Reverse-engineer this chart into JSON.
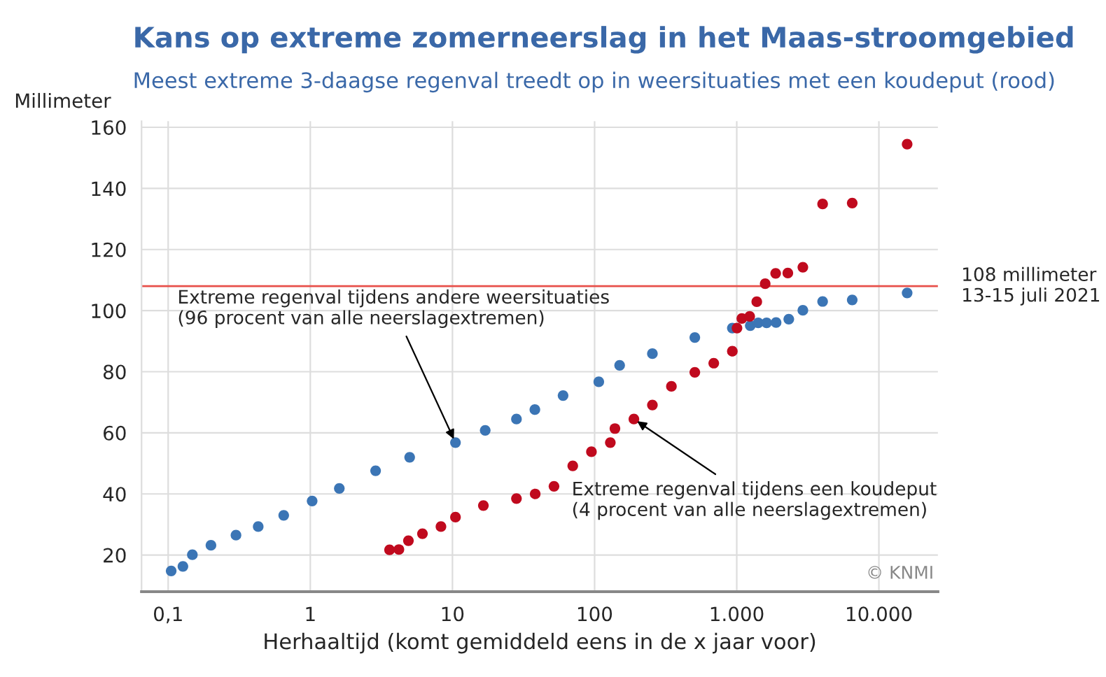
{
  "chart_data": {
    "type": "scatter",
    "title": "Kans op extreme zomerneerslag in het Maas-stroomgebied",
    "subtitle": "Meest extreme 3-daagse regenval treedt op in weersituaties met een koudeput (rood)",
    "xlabel": "Herhaaltijd (komt gemiddeld eens in de x jaar voor)",
    "ylabel": "Millimeter",
    "log": "x",
    "xlim": [
      0.065,
      26000
    ],
    "ylim": [
      8,
      162
    ],
    "xticks": [
      {
        "value": 0.1,
        "label": "0,1"
      },
      1,
      10,
      100,
      {
        "value": 1000,
        "label": "1.000"
      },
      {
        "value": 10000,
        "label": "10.000"
      }
    ],
    "yticks": [
      20,
      40,
      60,
      80,
      100,
      120,
      140,
      160
    ],
    "grid": true,
    "marker": "circle",
    "series": [
      {
        "color": "#3b75b5",
        "x": [
          0.105,
          0.127,
          0.148,
          0.2,
          0.3,
          0.43,
          0.65,
          1.03,
          1.6,
          2.88,
          5.0,
          10.5,
          17,
          28.2,
          38,
          60,
          107,
          150,
          255,
          507,
          931,
          1245,
          1416,
          1622,
          1891,
          2323,
          2918,
          4018,
          6491,
          15800
        ],
        "values": [
          14.8,
          16.3,
          20.1,
          23.2,
          26.5,
          29.3,
          33.0,
          37.7,
          41.8,
          47.6,
          52.0,
          56.8,
          60.8,
          64.5,
          67.6,
          72.2,
          76.7,
          82.1,
          85.9,
          91.2,
          94.3,
          95.1,
          96.0,
          96.0,
          96.1,
          97.2,
          100.1,
          103.0,
          103.5,
          105.8
        ]
      },
      {
        "color": "#c00a1e",
        "x": [
          3.61,
          4.2,
          4.9,
          6.15,
          8.3,
          10.5,
          16.5,
          28.2,
          38.2,
          51.8,
          70.2,
          95,
          129,
          139,
          189,
          255,
          347,
          507,
          689,
          931,
          1004,
          1086,
          1233,
          1383,
          1585,
          1878,
          2287,
          2918,
          4018,
          6491,
          15800
        ],
        "values": [
          21.7,
          21.8,
          24.7,
          27.0,
          29.3,
          32.4,
          36.2,
          38.5,
          40.0,
          42.5,
          49.2,
          53.8,
          56.8,
          61.4,
          64.5,
          69.1,
          75.2,
          79.8,
          82.8,
          86.7,
          94.3,
          97.4,
          98.1,
          102.9,
          108.8,
          112.2,
          112.3,
          114.2,
          134.9,
          135.2,
          154.5
        ]
      }
    ],
    "ref_lines": [
      {
        "axis": "y",
        "value": 108,
        "label": "108 millimeter\n13-15 juli 2021",
        "color": "#e8504a"
      }
    ],
    "annotations": [
      {
        "text": "Extreme regenval tijdens andere weersituaties\n(96 procent van alle neerslagextremen)",
        "x": 10.5,
        "y": 56.8
      },
      {
        "text": "Extreme regenval tijdens een koudeput\n(4 procent van alle neerslagextremen)",
        "x": 189,
        "y": 64.5
      },
      "© KNMI"
    ]
  }
}
